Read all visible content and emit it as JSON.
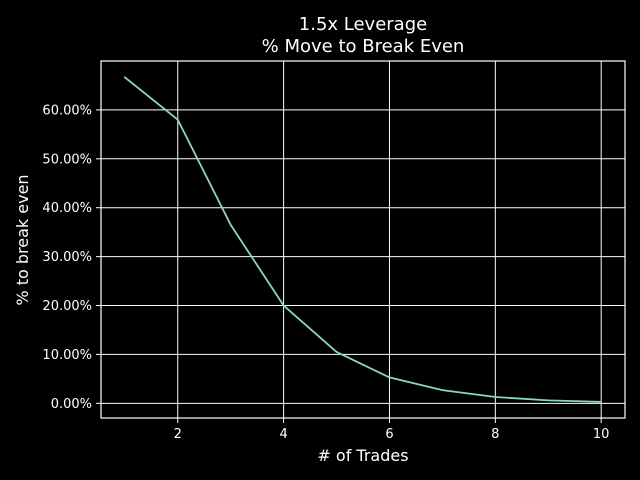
{
  "chart_data": {
    "type": "line",
    "title": [
      "1.5x Leverage",
      "% Move to Break Even"
    ],
    "xlabel": "# of Trades",
    "ylabel": "% to break even",
    "x": [
      1,
      2,
      3,
      4,
      5,
      6,
      7,
      8,
      9,
      10
    ],
    "series": [
      {
        "values": [
          66.67,
          58.0,
          36.5,
          20.0,
          10.5,
          5.3,
          2.7,
          1.3,
          0.6,
          0.3
        ],
        "color": "#8dd3c7"
      }
    ],
    "xlim": [
      0.55,
      10.45
    ],
    "ylim": [
      -3.0,
      70.0
    ],
    "xticks": [
      2,
      4,
      6,
      8,
      10
    ],
    "xtick_labels": [
      "2",
      "4",
      "6",
      "8",
      "10"
    ],
    "yticks": [
      0,
      10,
      20,
      30,
      40,
      50,
      60
    ],
    "ytick_labels": [
      "0.00%",
      "10.00%",
      "20.00%",
      "30.00%",
      "40.00%",
      "50.00%",
      "60.00%"
    ],
    "grid": true,
    "background": "#000000",
    "foreground": "#ffffff"
  }
}
